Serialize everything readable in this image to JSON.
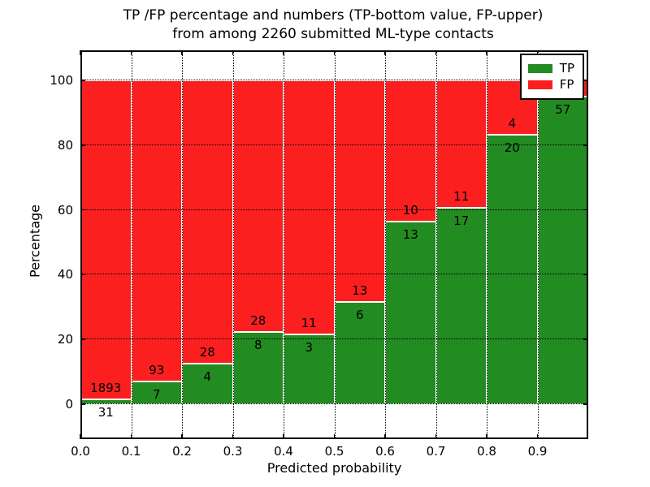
{
  "title": {
    "line1": "TP /FP percentage and numbers (TP-bottom value, FP-upper)",
    "line2": "from among 2260 submitted ML-type contacts"
  },
  "axes": {
    "xlabel": "Predicted probability",
    "ylabel": "Percentage",
    "x_tick_values": [
      0.0,
      0.1,
      0.2,
      0.3,
      0.4,
      0.5,
      0.6,
      0.7,
      0.8,
      0.9
    ],
    "x_tick_labels": [
      "0.0",
      "0.1",
      "0.2",
      "0.3",
      "0.4",
      "0.5",
      "0.6",
      "0.7",
      "0.8",
      "0.9"
    ],
    "y_tick_values": [
      0,
      20,
      40,
      60,
      80,
      100
    ],
    "y_tick_labels": [
      "0",
      "20",
      "40",
      "60",
      "80",
      "100"
    ],
    "grid": true
  },
  "legend": {
    "position": "upper right",
    "items": [
      {
        "label": "TP",
        "series": "tp"
      },
      {
        "label": "FP",
        "series": "fp"
      }
    ]
  },
  "chart_data": {
    "type": "bar",
    "stacked": true,
    "normalized_to_percent": 100,
    "title": "TP /FP percentage and numbers (TP-bottom value, FP-upper) from among 2260 submitted ML-type contacts",
    "xlabel": "Predicted probability",
    "ylabel": "Percentage",
    "xlim": [
      0.0,
      1.0
    ],
    "ylim": [
      -10.8,
      109.3
    ],
    "total_contacts": 2260,
    "colors": {
      "tp": "#228b22",
      "fp": "#fb1f1f",
      "edge": "#ffffff"
    },
    "series_note": "each bar spans a 0.1 predicted-probability bin; green TP on bottom, red FP on top, stacked to 100%; counts printed at the TP/FP boundary",
    "bins": [
      {
        "x0": 0.0,
        "x1": 0.1,
        "tp": 31,
        "fp": 1893,
        "fp_label_visible": true
      },
      {
        "x0": 0.1,
        "x1": 0.2,
        "tp": 7,
        "fp": 93,
        "fp_label_visible": true
      },
      {
        "x0": 0.2,
        "x1": 0.3,
        "tp": 4,
        "fp": 28,
        "fp_label_visible": true
      },
      {
        "x0": 0.3,
        "x1": 0.4,
        "tp": 8,
        "fp": 28,
        "fp_label_visible": true
      },
      {
        "x0": 0.4,
        "x1": 0.5,
        "tp": 3,
        "fp": 11,
        "fp_label_visible": true
      },
      {
        "x0": 0.5,
        "x1": 0.6,
        "tp": 6,
        "fp": 13,
        "fp_label_visible": true
      },
      {
        "x0": 0.6,
        "x1": 0.7,
        "tp": 13,
        "fp": 10,
        "fp_label_visible": true
      },
      {
        "x0": 0.7,
        "x1": 0.8,
        "tp": 17,
        "fp": 11,
        "fp_label_visible": true
      },
      {
        "x0": 0.8,
        "x1": 0.9,
        "tp": 20,
        "fp": 4,
        "fp_label_visible": true
      },
      {
        "x0": 0.9,
        "x1": 1.0,
        "tp": 57,
        "fp": 3,
        "fp_label_visible": false
      }
    ]
  }
}
